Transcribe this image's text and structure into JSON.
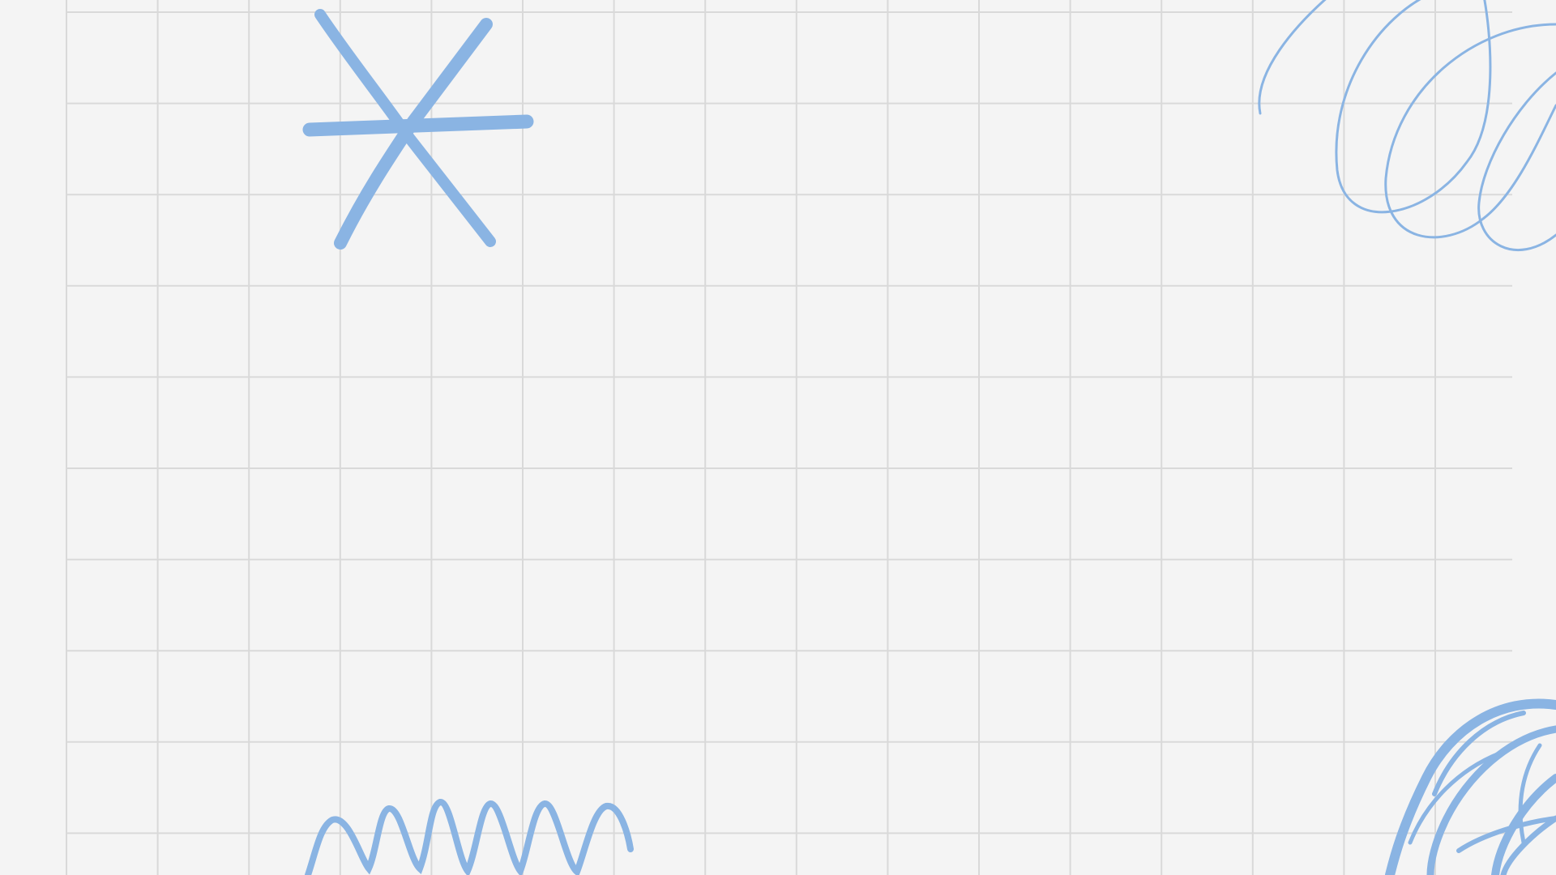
{
  "background": {
    "paper_color": "#f4f4f4",
    "grid_line_color": "#d9d9d9"
  },
  "doodles": {
    "color": "#8ab4e3",
    "items": [
      {
        "name": "asterisk-doodle",
        "icon": "asterisk"
      },
      {
        "name": "loop-scribble-doodle",
        "icon": "spiral-loops"
      },
      {
        "name": "zigzag-doodle",
        "icon": "zigzag-wave"
      },
      {
        "name": "scribble-ball-doodle",
        "icon": "scribble-circle"
      }
    ]
  }
}
